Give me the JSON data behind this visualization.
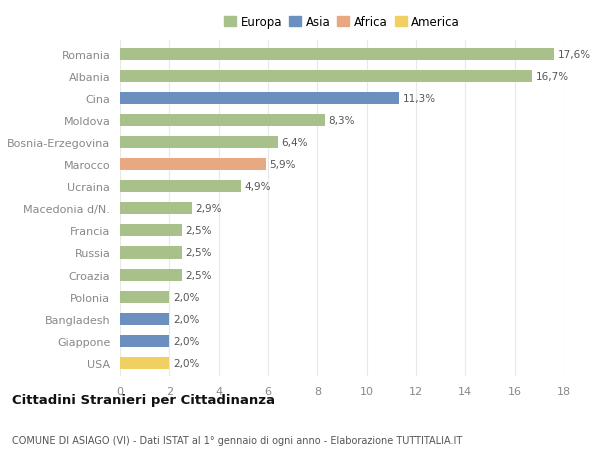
{
  "countries": [
    "Romania",
    "Albania",
    "Cina",
    "Moldova",
    "Bosnia-Erzegovina",
    "Marocco",
    "Ucraina",
    "Macedonia d/N.",
    "Francia",
    "Russia",
    "Croazia",
    "Polonia",
    "Bangladesh",
    "Giappone",
    "USA"
  ],
  "values": [
    17.6,
    16.7,
    11.3,
    8.3,
    6.4,
    5.9,
    4.9,
    2.9,
    2.5,
    2.5,
    2.5,
    2.0,
    2.0,
    2.0,
    2.0
  ],
  "labels": [
    "17,6%",
    "16,7%",
    "11,3%",
    "8,3%",
    "6,4%",
    "5,9%",
    "4,9%",
    "2,9%",
    "2,5%",
    "2,5%",
    "2,5%",
    "2,0%",
    "2,0%",
    "2,0%",
    "2,0%"
  ],
  "continent": [
    "Europa",
    "Europa",
    "Asia",
    "Europa",
    "Europa",
    "Africa",
    "Europa",
    "Europa",
    "Europa",
    "Europa",
    "Europa",
    "Europa",
    "Asia",
    "Asia",
    "America"
  ],
  "colors": {
    "Europa": "#a8c08a",
    "Asia": "#6b8fbf",
    "Africa": "#e8a882",
    "America": "#f0d060"
  },
  "legend_order": [
    "Europa",
    "Asia",
    "Africa",
    "America"
  ],
  "title": "Cittadini Stranieri per Cittadinanza",
  "subtitle": "COMUNE DI ASIAGO (VI) - Dati ISTAT al 1° gennaio di ogni anno - Elaborazione TUTTITALIA.IT",
  "xlim": [
    0,
    18
  ],
  "xticks": [
    0,
    2,
    4,
    6,
    8,
    10,
    12,
    14,
    16,
    18
  ],
  "background_color": "#ffffff",
  "grid_color": "#e8e8e8",
  "bar_height": 0.55,
  "label_fontsize": 7.5,
  "tick_fontsize": 8,
  "legend_fontsize": 8.5,
  "title_fontsize": 9.5,
  "subtitle_fontsize": 7
}
